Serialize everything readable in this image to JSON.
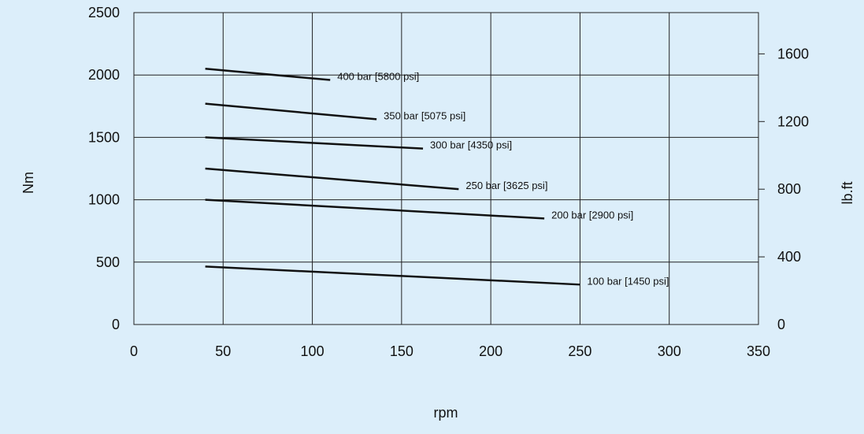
{
  "chart_data": {
    "type": "line",
    "title": "",
    "xlabel": "rpm",
    "ylabel": "Nm",
    "y2label": "lb.ft",
    "xlim": [
      0,
      350
    ],
    "ylim": [
      0,
      2500
    ],
    "y2lim": [
      0,
      1844
    ],
    "x_ticks": [
      0,
      50,
      100,
      150,
      200,
      250,
      300,
      350
    ],
    "y_ticks": [
      0,
      500,
      1000,
      1500,
      2000,
      2500
    ],
    "y2_ticks": [
      0,
      400,
      800,
      1200,
      1600
    ],
    "grid": true,
    "series": [
      {
        "name": "400 bar [5800 psi]",
        "x": [
          40,
          110
        ],
        "y": [
          2050,
          1960
        ]
      },
      {
        "name": "350 bar [5075 psi]",
        "x": [
          40,
          136
        ],
        "y": [
          1770,
          1645
        ]
      },
      {
        "name": "300 bar [4350 psi]",
        "x": [
          40,
          162
        ],
        "y": [
          1500,
          1410
        ]
      },
      {
        "name": "250 bar [3625 psi]",
        "x": [
          40,
          182
        ],
        "y": [
          1250,
          1085
        ]
      },
      {
        "name": "200 bar [2900 psi]",
        "x": [
          40,
          230
        ],
        "y": [
          1000,
          850
        ]
      },
      {
        "name": "100 bar [1450 psi]",
        "x": [
          40,
          250
        ],
        "y": [
          465,
          320
        ]
      }
    ]
  }
}
